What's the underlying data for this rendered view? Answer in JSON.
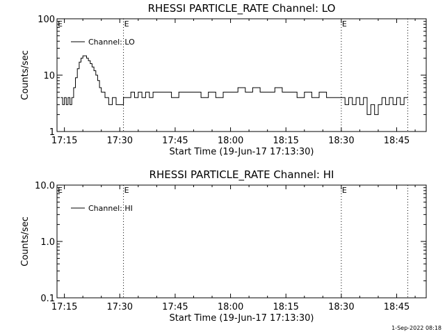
{
  "footer": {
    "timestamp": "1-Sep-2022 08:18"
  },
  "chart_data": [
    {
      "type": "line",
      "title": "RHESSI PARTICLE_RATE Channel: LO",
      "xlabel": "Start Time (19-Jun-17 17:13:30)",
      "ylabel": "Counts/sec",
      "yscale": "log",
      "xlim": [
        "17:13",
        "18:53"
      ],
      "ylim": [
        1,
        100
      ],
      "x_ticks": [
        "17:15",
        "17:30",
        "17:45",
        "18:00",
        "18:15",
        "18:30",
        "18:45"
      ],
      "y_ticks": [
        "1",
        "10",
        "100"
      ],
      "legend": {
        "label": "Channel: LO",
        "position": "top-left"
      },
      "event_markers": [
        {
          "time": "17:31",
          "label": "E"
        },
        {
          "time": "18:30",
          "label": "E"
        },
        {
          "time": "18:48",
          "label": ""
        }
      ],
      "series": [
        {
          "x": [
            "17:14",
            "17:14.5",
            "17:15",
            "17:15.5",
            "17:16",
            "17:16.5",
            "17:17",
            "17:17.5",
            "17:18",
            "17:18.5",
            "17:19",
            "17:19.5",
            "17:20",
            "17:20.5",
            "17:21",
            "17:21.5",
            "17:22",
            "17:22.5",
            "17:23",
            "17:23.5",
            "17:24",
            "17:24.5",
            "17:25",
            "17:26",
            "17:27",
            "17:28",
            "17:29",
            "17:30",
            "17:31",
            "17:32",
            "17:33",
            "17:34",
            "17:35",
            "17:36",
            "17:37",
            "17:38",
            "17:39",
            "17:40",
            "17:42",
            "17:44",
            "17:46",
            "17:48",
            "17:50",
            "17:52",
            "17:54",
            "17:56",
            "17:58",
            "18:00",
            "18:02",
            "18:04",
            "18:06",
            "18:08",
            "18:10",
            "18:12",
            "18:14",
            "18:16",
            "18:18",
            "18:20",
            "18:22",
            "18:24",
            "18:26",
            "18:28",
            "18:30",
            "18:31",
            "18:32",
            "18:33",
            "18:34",
            "18:35",
            "18:36",
            "18:37",
            "18:38",
            "18:39",
            "18:40",
            "18:41",
            "18:42",
            "18:43",
            "18:44",
            "18:45",
            "18:46",
            "18:47",
            "18:48"
          ],
          "y": [
            4,
            3,
            4,
            3,
            4,
            3,
            4,
            6,
            9,
            13,
            17,
            20,
            22,
            22,
            20,
            18,
            16,
            14,
            12,
            10,
            8,
            6,
            5,
            4,
            3,
            4,
            3,
            3,
            4,
            4,
            5,
            4,
            5,
            4,
            5,
            4,
            5,
            5,
            5,
            4,
            5,
            5,
            5,
            4,
            5,
            4,
            5,
            5,
            6,
            5,
            6,
            5,
            5,
            6,
            5,
            5,
            4,
            5,
            4,
            5,
            4,
            4,
            4,
            3,
            4,
            3,
            4,
            3,
            4,
            2,
            3,
            2,
            3,
            4,
            3,
            4,
            3,
            4,
            3,
            4,
            4
          ]
        }
      ]
    },
    {
      "type": "line",
      "title": "RHESSI PARTICLE_RATE Channel: HI",
      "xlabel": "Start Time (19-Jun-17 17:13:30)",
      "ylabel": "Counts/sec",
      "yscale": "log",
      "xlim": [
        "17:13",
        "18:53"
      ],
      "ylim": [
        0.1,
        10
      ],
      "x_ticks": [
        "17:15",
        "17:30",
        "17:45",
        "18:00",
        "18:15",
        "18:30",
        "18:45"
      ],
      "y_ticks": [
        "0.1",
        "1.0",
        "10.0"
      ],
      "legend": {
        "label": "Channel: HI",
        "position": "top-left"
      },
      "event_markers": [
        {
          "time": "17:31",
          "label": "E"
        },
        {
          "time": "18:30",
          "label": "E"
        },
        {
          "time": "18:48",
          "label": ""
        }
      ],
      "series": []
    }
  ]
}
